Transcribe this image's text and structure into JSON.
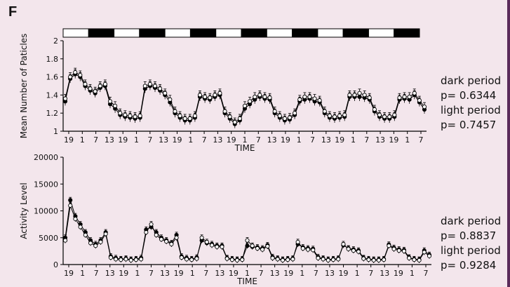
{
  "panel_label": "F",
  "colors": {
    "background": "#f3e6ec",
    "right_bar": "#5a2a5a",
    "dark_block": "#000000",
    "light_block": "#ffffff"
  },
  "light_dark_bar": [
    "light",
    "dark",
    "light",
    "dark",
    "light",
    "dark",
    "light",
    "dark",
    "light",
    "dark",
    "light",
    "dark",
    "light",
    "dark"
  ],
  "top_stats": {
    "dark_label": "dark period",
    "dark_p": "p= 0.6344",
    "light_label": "light period",
    "light_p": "p= 0.7457"
  },
  "bottom_stats": {
    "dark_label": "dark period",
    "dark_p": "p= 0.8837",
    "light_label": "light period",
    "light_p": "p= 0.9284"
  },
  "chart_data": [
    {
      "type": "line",
      "ylabel": "Mean Number of Paticles",
      "xlabel": "TIME",
      "ylim": [
        1,
        2
      ],
      "yticks": [
        "1",
        "1.2",
        "1.4",
        "1.6",
        "1.8",
        "2"
      ],
      "x_tick_labels": [
        "19",
        "1",
        "7",
        "13",
        "19",
        "1",
        "7",
        "13",
        "19",
        "1",
        "7",
        "13",
        "19",
        "1",
        "7",
        "13",
        "19",
        "1",
        "7",
        "13",
        "19",
        "1",
        "7",
        "13",
        "19",
        "1",
        "7"
      ],
      "markers": [
        "filled",
        "open"
      ],
      "series": [
        {
          "marker": "filled",
          "values": [
            1.33,
            1.58,
            1.63,
            1.6,
            1.5,
            1.45,
            1.42,
            1.48,
            1.5,
            1.3,
            1.25,
            1.18,
            1.16,
            1.15,
            1.14,
            1.15,
            1.47,
            1.5,
            1.48,
            1.45,
            1.4,
            1.32,
            1.2,
            1.15,
            1.12,
            1.12,
            1.15,
            1.38,
            1.36,
            1.35,
            1.38,
            1.4,
            1.2,
            1.14,
            1.08,
            1.12,
            1.25,
            1.3,
            1.35,
            1.38,
            1.36,
            1.35,
            1.2,
            1.15,
            1.12,
            1.13,
            1.18,
            1.33,
            1.35,
            1.36,
            1.33,
            1.32,
            1.2,
            1.15,
            1.14,
            1.15,
            1.16,
            1.38,
            1.38,
            1.38,
            1.37,
            1.35,
            1.22,
            1.16,
            1.14,
            1.14,
            1.16,
            1.35,
            1.36,
            1.35,
            1.4,
            1.32,
            1.24
          ]
        },
        {
          "marker": "open",
          "values": [
            1.36,
            1.6,
            1.65,
            1.62,
            1.52,
            1.47,
            1.44,
            1.5,
            1.52,
            1.33,
            1.28,
            1.2,
            1.18,
            1.17,
            1.16,
            1.17,
            1.5,
            1.52,
            1.5,
            1.47,
            1.42,
            1.35,
            1.22,
            1.17,
            1.14,
            1.14,
            1.17,
            1.4,
            1.38,
            1.37,
            1.4,
            1.42,
            1.22,
            1.16,
            1.1,
            1.14,
            1.28,
            1.33,
            1.38,
            1.4,
            1.38,
            1.37,
            1.22,
            1.17,
            1.14,
            1.15,
            1.2,
            1.35,
            1.38,
            1.38,
            1.36,
            1.34,
            1.22,
            1.17,
            1.16,
            1.17,
            1.18,
            1.4,
            1.4,
            1.42,
            1.4,
            1.37,
            1.24,
            1.18,
            1.16,
            1.16,
            1.18,
            1.37,
            1.38,
            1.38,
            1.42,
            1.34,
            1.27
          ]
        }
      ]
    },
    {
      "type": "line",
      "ylabel": "Activity Level",
      "xlabel": "TIME",
      "ylim": [
        0,
        20000
      ],
      "yticks": [
        "0",
        "5000",
        "10000",
        "15000",
        "20000"
      ],
      "x_tick_labels": [
        "19",
        "1",
        "7",
        "13",
        "19",
        "1",
        "7",
        "13",
        "19",
        "1",
        "7",
        "13",
        "19",
        "1",
        "7",
        "13",
        "19",
        "1",
        "7",
        "13",
        "19",
        "1",
        "7",
        "13",
        "19",
        "1",
        "7"
      ],
      "markers": [
        "filled",
        "open"
      ],
      "series": [
        {
          "marker": "filled",
          "values": [
            5000,
            12000,
            9000,
            7500,
            6000,
            4500,
            3800,
            4500,
            6000,
            1500,
            1200,
            1000,
            1100,
            900,
            1000,
            1200,
            6500,
            7000,
            6000,
            5000,
            4500,
            4000,
            5500,
            1500,
            1200,
            1000,
            1300,
            4500,
            4000,
            3800,
            3500,
            3500,
            1200,
            1000,
            900,
            1000,
            3500,
            3300,
            3200,
            3000,
            3600,
            1400,
            1100,
            900,
            1000,
            1100,
            3800,
            3200,
            3000,
            2900,
            1400,
            1100,
            900,
            1000,
            1100,
            3600,
            3000,
            2800,
            2600,
            1200,
            1000,
            900,
            900,
            1000,
            3700,
            3100,
            2800,
            2700,
            1300,
            1000,
            900,
            2600,
            1800
          ]
        },
        {
          "marker": "open",
          "values": [
            4500,
            11000,
            8500,
            7000,
            5500,
            4000,
            3500,
            4200,
            5700,
            1300,
            1000,
            900,
            1000,
            800,
            900,
            1000,
            6000,
            7500,
            5500,
            4700,
            4300,
            3800,
            5000,
            1300,
            1000,
            900,
            1100,
            5000,
            4200,
            3600,
            3300,
            3300,
            1100,
            900,
            800,
            900,
            4500,
            3500,
            3000,
            2800,
            3400,
            1200,
            1000,
            800,
            900,
            1000,
            4200,
            3000,
            2800,
            2700,
            1200,
            1000,
            800,
            900,
            1000,
            3800,
            2900,
            2600,
            2400,
            1100,
            900,
            800,
            800,
            900,
            3500,
            2900,
            2600,
            2500,
            1200,
            900,
            800,
            2300,
            1600
          ]
        }
      ]
    }
  ]
}
